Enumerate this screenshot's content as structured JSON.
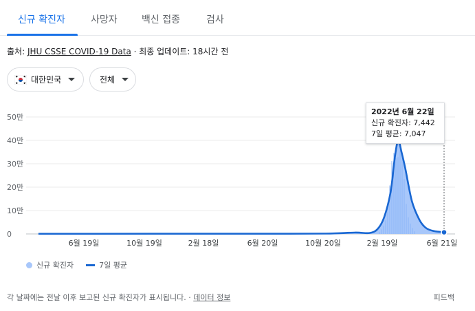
{
  "tabs": [
    {
      "label": "신규 확진자",
      "active": true
    },
    {
      "label": "사망자",
      "active": false
    },
    {
      "label": "백신 접종",
      "active": false
    },
    {
      "label": "검사",
      "active": false
    }
  ],
  "source": {
    "prefix": "출처: ",
    "link": "JHU CSSE COVID-19 Data",
    "updated": " · 최종 업데이트: 18시간 전"
  },
  "filters": {
    "region": "대한민국",
    "region_flag_icon": "south-korea-flag-icon",
    "period": "전체"
  },
  "tooltip": {
    "date": "2022년 6월 22일",
    "new_cases": "신규 확진자: 7,442",
    "avg7": "7일 평균: 7,047"
  },
  "legend": {
    "bars_label": "신규 확진자",
    "line_label": "7일 평균"
  },
  "colors": {
    "accent": "#1a73e8",
    "bar_fill": "#a8c7fa",
    "line": "#1967d2"
  },
  "footer": {
    "text": "각 날짜에는 전날 이후 보고된 신규 확진자가 표시됩니다.",
    "sep": " · ",
    "link": "데이터 정보",
    "feedback": "피드백"
  },
  "chart_data": {
    "type": "area",
    "title": "",
    "xlabel": "",
    "ylabel": "",
    "ylim": [
      0,
      500000
    ],
    "y_ticks": [
      0,
      100000,
      200000,
      300000,
      400000,
      500000
    ],
    "y_tick_labels": [
      "0",
      "10만",
      "20만",
      "30만",
      "40만",
      "50만"
    ],
    "x_tick_labels": [
      "6월 19일",
      "10월 19일",
      "2월 18일",
      "6월 20일",
      "10월 20일",
      "2월 19일",
      "6월 21일"
    ],
    "grid": true,
    "series": [
      {
        "name": "7일 평균",
        "x": [
          "2020-02",
          "2020-06",
          "2020-10",
          "2021-02",
          "2021-06",
          "2021-10",
          "2021-12",
          "2022-01",
          "2022-02-01",
          "2022-02-15",
          "2022-03-01",
          "2022-03-10",
          "2022-03-17",
          "2022-03-24",
          "2022-04-01",
          "2022-04-15",
          "2022-05-01",
          "2022-05-15",
          "2022-06-01",
          "2022-06-22"
        ],
        "values": [
          500,
          500,
          1000,
          800,
          1000,
          1500,
          6000,
          4000,
          20000,
          70000,
          180000,
          330000,
          400000,
          350000,
          280000,
          140000,
          60000,
          25000,
          12000,
          7047
        ]
      }
    ],
    "highlight": {
      "date": "2022년 6월 22일",
      "new_cases": 7442,
      "avg7": 7047
    }
  }
}
